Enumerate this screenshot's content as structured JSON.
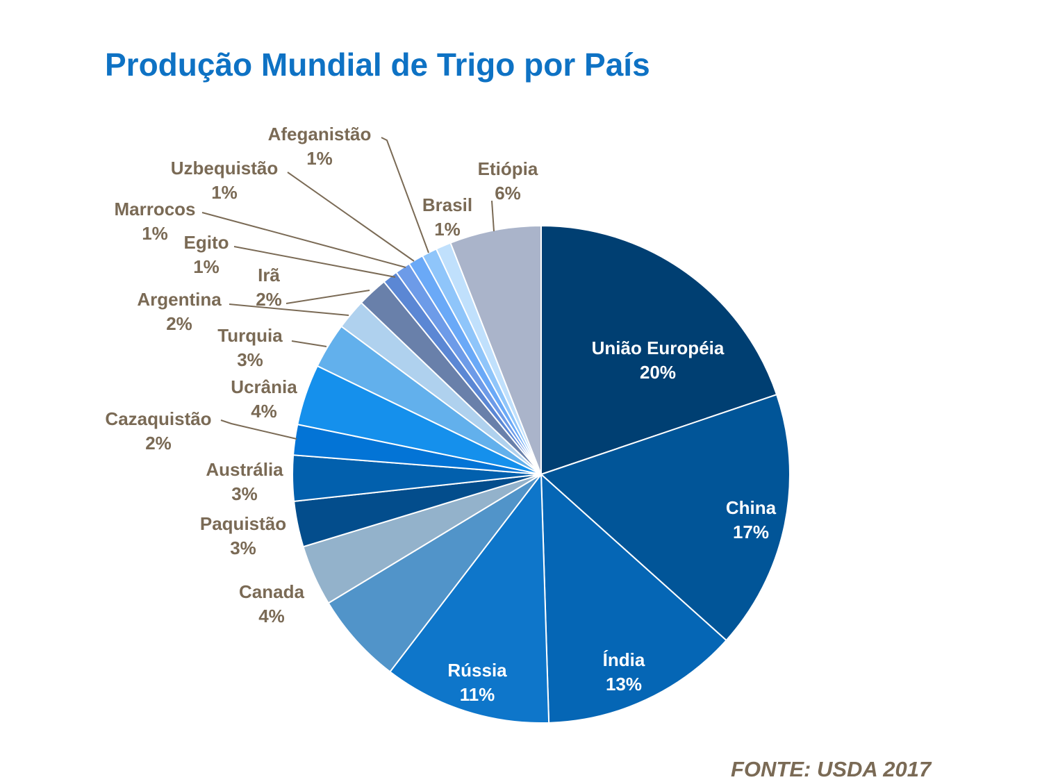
{
  "chart_data": {
    "type": "pie",
    "title": "Produção Mundial de Trigo por País",
    "source": "FONTE: USDA 2017",
    "slices": [
      {
        "label": "União Européia",
        "value": 20,
        "pct": "20%",
        "color": "#003f72"
      },
      {
        "label": "China",
        "value": 17,
        "pct": "17%",
        "color": "#015598"
      },
      {
        "label": "Índia",
        "value": 13,
        "pct": "13%",
        "color": "#0566b5"
      },
      {
        "label": "Rússia",
        "value": 11,
        "pct": "11%",
        "color": "#0e76ca"
      },
      {
        "label": "",
        "value": 6,
        "pct": "",
        "color": "#5194c9"
      },
      {
        "label": "Canada",
        "value": 4,
        "pct": "4%",
        "color": "#93b2cb"
      },
      {
        "label": "Paquistão",
        "value": 3,
        "pct": "3%",
        "color": "#034d8c"
      },
      {
        "label": "Austrália",
        "value": 3,
        "pct": "3%",
        "color": "#0260ad"
      },
      {
        "label": "Cazaquistão",
        "value": 2,
        "pct": "2%",
        "color": "#0374d6"
      },
      {
        "label": "Ucrânia",
        "value": 4,
        "pct": "4%",
        "color": "#1590ec"
      },
      {
        "label": "Turquia",
        "value": 3,
        "pct": "3%",
        "color": "#62b0ec"
      },
      {
        "label": "Argentina",
        "value": 2,
        "pct": "2%",
        "color": "#afd1ee"
      },
      {
        "label": "Irã",
        "value": 2,
        "pct": "2%",
        "color": "#6980aa"
      },
      {
        "label": "Egito",
        "value": 1,
        "pct": "1%",
        "color": "#5b87d4"
      },
      {
        "label": "Marrocos",
        "value": 1,
        "pct": "1%",
        "color": "#6d9be8"
      },
      {
        "label": "Uzbequistão",
        "value": 1,
        "pct": "1%",
        "color": "#6aa9f7"
      },
      {
        "label": "Afeganistão",
        "value": 1,
        "pct": "1%",
        "color": "#8fc5fa"
      },
      {
        "label": "Brasil",
        "value": 1,
        "pct": "1%",
        "color": "#c0e0fc"
      },
      {
        "label": "Etiópia",
        "value": 6,
        "pct": "6%",
        "color": "#aab4ca"
      }
    ],
    "colors": {
      "title": "#0e72c4",
      "external_label": "#7a6a55",
      "internal_label": "#ffffff",
      "leader_line": "#7a6a55"
    }
  }
}
